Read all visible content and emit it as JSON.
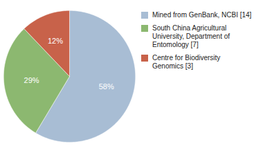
{
  "chart_data": {
    "type": "pie",
    "categories": [
      "Mined from GenBank, NCBI [14]",
      "South China Agricultural\nUniversity, Department of\nEntomology [7]",
      "Centre for Biodiversity\nGenomics [3]"
    ],
    "values": [
      58,
      29,
      12
    ],
    "value_labels": [
      "58%",
      "29%",
      "12%"
    ],
    "colors": [
      "#a8bdd4",
      "#8cb870",
      "#c8624a"
    ],
    "data_labels": true,
    "legend": "right"
  }
}
